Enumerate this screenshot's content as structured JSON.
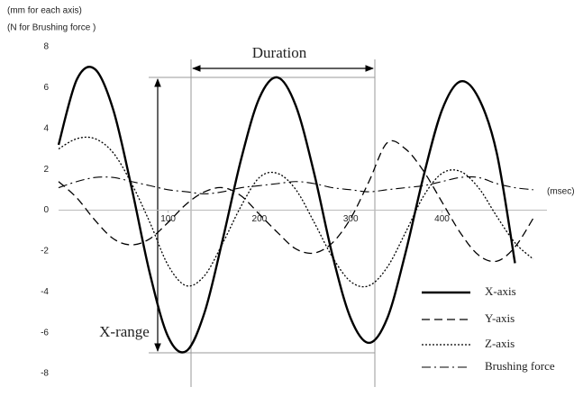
{
  "chart_data": {
    "type": "line",
    "ylabel_lines": [
      "(mm for each axis)",
      "(N for Brushing force )"
    ],
    "xlabel": "(msec)",
    "annotations": [
      "Duration",
      "X-range"
    ],
    "x": [
      -20,
      0,
      20,
      40,
      60,
      80,
      100,
      120,
      140,
      160,
      180,
      200,
      220,
      240,
      260,
      280,
      300,
      320,
      340,
      360,
      380,
      400,
      420,
      440,
      460,
      480,
      500
    ],
    "xlim": [
      -20,
      515
    ],
    "xticks": [
      100,
      200,
      300,
      400
    ],
    "ylim": [
      -8,
      8
    ],
    "yticks": [
      -8,
      -6,
      -4,
      -2,
      0,
      2,
      4,
      6,
      8
    ],
    "grid": false,
    "legend_position": "lower right",
    "series": [
      {
        "name": "X-axis",
        "color": "#000000",
        "line_style": "solid",
        "line_width": 2.4,
        "values": [
          3.2,
          6.4,
          6.9,
          4.9,
          1.1,
          -3.1,
          -6.2,
          -6.9,
          -5.0,
          -1.4,
          2.5,
          5.5,
          6.5,
          5.1,
          1.8,
          -2.2,
          -5.3,
          -6.5,
          -5.3,
          -2.1,
          1.7,
          4.9,
          6.3,
          5.5,
          2.8,
          -2.6,
          null
        ]
      },
      {
        "name": "Y-axis",
        "color": "#000000",
        "line_style": "dashed",
        "line_width": 1.3,
        "values": [
          1.4,
          0.6,
          -0.5,
          -1.4,
          -1.7,
          -1.4,
          -0.6,
          0.3,
          0.9,
          1.1,
          0.7,
          -0.2,
          -1.1,
          -1.9,
          -2.1,
          -1.6,
          -0.4,
          1.4,
          3.3,
          3.0,
          1.9,
          0.4,
          -1.1,
          -2.2,
          -2.5,
          -1.8,
          -0.4
        ]
      },
      {
        "name": "Z-axis",
        "color": "#000000",
        "line_style": "dotted",
        "line_width": 1.3,
        "values": [
          3.0,
          3.5,
          3.5,
          2.8,
          1.3,
          -0.6,
          -2.7,
          -3.7,
          -3.2,
          -1.6,
          0.2,
          1.6,
          1.8,
          1.0,
          -0.6,
          -2.3,
          -3.5,
          -3.7,
          -2.8,
          -1.1,
          0.7,
          1.8,
          1.9,
          1.1,
          -0.3,
          -1.6,
          -2.4
        ]
      },
      {
        "name": "Brushing force",
        "color": "#000000",
        "line_style": "dashdot",
        "line_width": 1.1,
        "values": [
          1.1,
          1.4,
          1.6,
          1.6,
          1.4,
          1.2,
          1.0,
          0.9,
          0.8,
          0.9,
          1.1,
          1.2,
          1.3,
          1.4,
          1.3,
          1.1,
          1.0,
          0.9,
          1.0,
          1.1,
          1.2,
          1.4,
          1.6,
          1.6,
          1.3,
          1.1,
          1.0
        ]
      }
    ]
  }
}
